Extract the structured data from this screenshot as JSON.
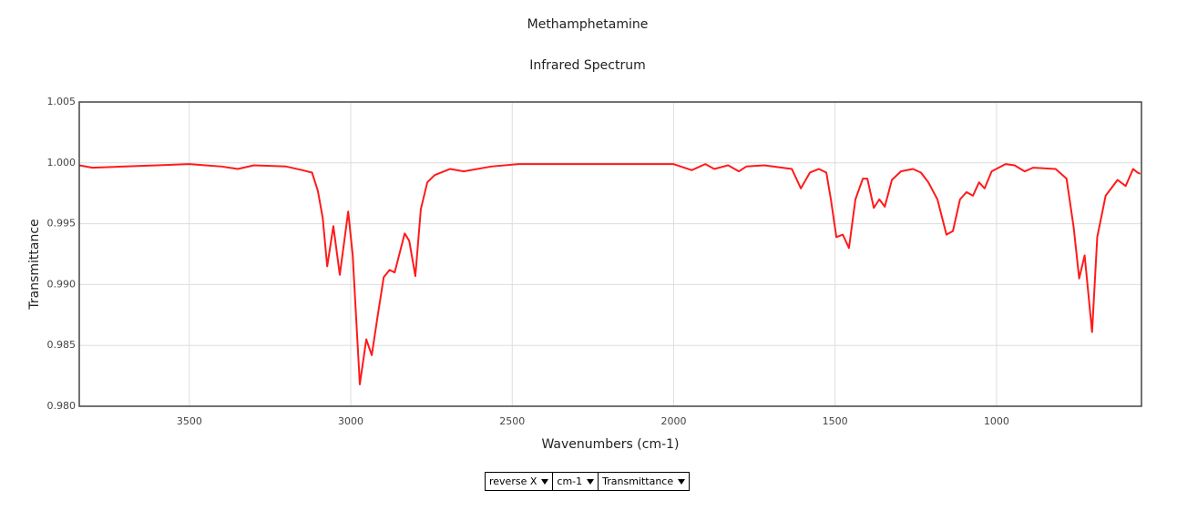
{
  "chart_data": {
    "type": "line",
    "title": "Methamphetamine",
    "subtitle": "Infrared Spectrum",
    "xlabel": "Wavenumbers (cm-1)",
    "ylabel": "Transmittance",
    "x": [
      3841,
      3800,
      3700,
      3600,
      3500,
      3450,
      3400,
      3350,
      3300,
      3200,
      3150,
      3120,
      3102,
      3087,
      3073,
      3054,
      3034,
      3008,
      2994,
      2972,
      2952,
      2935,
      2918,
      2898,
      2880,
      2864,
      2833,
      2819,
      2800,
      2783,
      2763,
      2740,
      2692,
      2650,
      2565,
      2480,
      2300,
      2100,
      2000,
      1944,
      1902,
      1874,
      1831,
      1798,
      1775,
      1719,
      1634,
      1606,
      1578,
      1550,
      1527,
      1513,
      1496,
      1476,
      1457,
      1437,
      1414,
      1400,
      1380,
      1363,
      1346,
      1324,
      1296,
      1259,
      1234,
      1211,
      1183,
      1155,
      1135,
      1113,
      1093,
      1073,
      1054,
      1037,
      1015,
      972,
      944,
      913,
      887,
      817,
      783,
      761,
      744,
      727,
      704,
      688,
      662,
      625,
      600,
      577,
      563,
      555
    ],
    "series": [
      {
        "name": "Transmittance",
        "color": "#ff1a1a",
        "values": [
          0.9998,
          0.9996,
          0.9997,
          0.9998,
          0.9999,
          0.9998,
          0.9997,
          0.9995,
          0.9998,
          0.9997,
          0.9994,
          0.9992,
          0.9977,
          0.9955,
          0.9915,
          0.9948,
          0.9908,
          0.996,
          0.9924,
          0.9818,
          0.9855,
          0.9842,
          0.9872,
          0.9906,
          0.9912,
          0.991,
          0.9942,
          0.9936,
          0.9907,
          0.9962,
          0.9984,
          0.999,
          0.9995,
          0.9993,
          0.9997,
          0.9999,
          0.9999,
          0.9999,
          0.9999,
          0.9994,
          0.9999,
          0.9995,
          0.9998,
          0.9993,
          0.9997,
          0.9998,
          0.9995,
          0.9979,
          0.9992,
          0.9995,
          0.9992,
          0.997,
          0.9939,
          0.9941,
          0.993,
          0.997,
          0.9987,
          0.9987,
          0.9963,
          0.997,
          0.9964,
          0.9986,
          0.9993,
          0.9995,
          0.9992,
          0.9984,
          0.997,
          0.9941,
          0.9944,
          0.997,
          0.9976,
          0.9973,
          0.9984,
          0.9979,
          0.9993,
          0.9999,
          0.9998,
          0.9993,
          0.9996,
          0.9995,
          0.9987,
          0.9947,
          0.9905,
          0.9924,
          0.9861,
          0.9939,
          0.9973,
          0.9986,
          0.9981,
          0.9995,
          0.9992,
          0.9991
        ]
      }
    ],
    "xlim": [
      3841,
      551
    ],
    "xticks": [
      3500,
      3000,
      2500,
      2000,
      1500,
      1000
    ],
    "ylim": [
      0.98,
      1.005
    ],
    "yticks": [
      {
        "value": 0.98,
        "label": "0.980"
      },
      0.985,
      {
        "value": 0.99,
        "label": "0.990"
      },
      0.995,
      {
        "value": 1,
        "label": "1.000"
      },
      1.005
    ],
    "grid": true
  },
  "controls": [
    "reverse X",
    "cm-1",
    "Transmittance"
  ]
}
